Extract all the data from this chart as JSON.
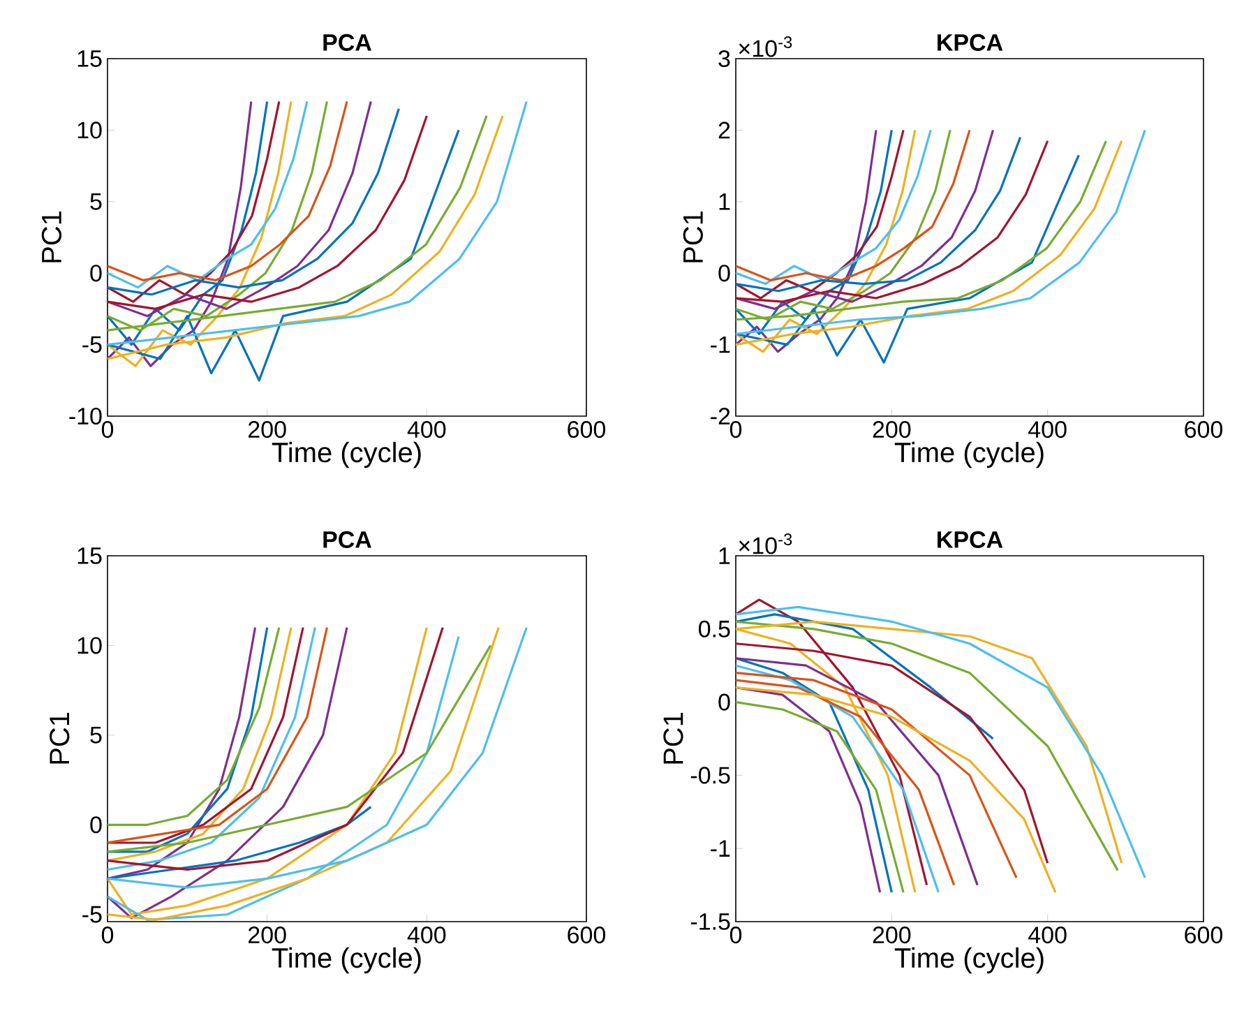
{
  "chart_data": [
    {
      "type": "line",
      "title": "PCA",
      "xlabel": "Time (cycle)",
      "ylabel": "PC1",
      "xlim": [
        0,
        600
      ],
      "ylim": [
        -10,
        15
      ],
      "xticks": [
        0,
        200,
        400,
        600
      ],
      "yticks": [
        -10,
        -5,
        0,
        5,
        10,
        15
      ],
      "series": [
        {
          "color": "#7E2F8E",
          "x": [
            0,
            27,
            54,
            81,
            108,
            130,
            151,
            167,
            180
          ],
          "values": [
            -6,
            -4.5,
            -6.5,
            -5,
            -4,
            -2,
            1,
            6,
            12
          ]
        },
        {
          "color": "#0072BD",
          "x": [
            0,
            30,
            60,
            90,
            120,
            144,
            168,
            186,
            200
          ],
          "values": [
            -3,
            -5,
            -2.5,
            -4,
            -1.5,
            -0.5,
            3,
            7,
            12
          ]
        },
        {
          "color": "#A2142F",
          "x": [
            0,
            32,
            65,
            97,
            129,
            155,
            181,
            200,
            215
          ],
          "values": [
            -1,
            -2,
            -0.5,
            -1.5,
            0,
            1.5,
            4,
            8,
            12
          ]
        },
        {
          "color": "#EDB120",
          "x": [
            0,
            35,
            69,
            104,
            138,
            166,
            193,
            214,
            230
          ],
          "values": [
            -5,
            -6.5,
            -4,
            -5,
            -3,
            -1,
            2.5,
            7,
            12
          ]
        },
        {
          "color": "#4DBEEE",
          "x": [
            0,
            38,
            75,
            113,
            150,
            180,
            210,
            233,
            250
          ],
          "values": [
            0,
            -1,
            0.5,
            -0.5,
            1,
            2,
            4.5,
            8,
            12
          ]
        },
        {
          "color": "#77AC30",
          "x": [
            0,
            41,
            83,
            124,
            165,
            198,
            231,
            256,
            275
          ],
          "values": [
            -3,
            -4,
            -2.5,
            -3,
            -1.5,
            0,
            3,
            7,
            12
          ]
        },
        {
          "color": "#D95319",
          "x": [
            0,
            45,
            90,
            135,
            180,
            216,
            252,
            279,
            300
          ],
          "values": [
            0.5,
            -0.5,
            0,
            -0.5,
            0.5,
            2,
            4,
            7.5,
            12
          ]
        },
        {
          "color": "#7E2F8E",
          "x": [
            0,
            50,
            99,
            149,
            198,
            238,
            277,
            307,
            330
          ],
          "values": [
            -2,
            -3,
            -1.5,
            -2.5,
            -1,
            0.5,
            3,
            7,
            12
          ]
        },
        {
          "color": "#0072BD",
          "x": [
            0,
            55,
            110,
            164,
            219,
            263,
            307,
            339,
            365
          ],
          "values": [
            -1,
            -1.5,
            -0.5,
            -1,
            -0.5,
            1,
            3.5,
            7,
            11.5
          ]
        },
        {
          "color": "#A2142F",
          "x": [
            0,
            60,
            120,
            180,
            240,
            288,
            336,
            372,
            400
          ],
          "values": [
            -2,
            -2.5,
            -1.5,
            -2,
            -1,
            0.5,
            3,
            6.5,
            11
          ]
        },
        {
          "color": "#0072BD",
          "x": [
            0,
            66,
            100,
            130,
            160,
            190,
            220,
            300,
            380,
            440
          ],
          "values": [
            -5,
            -6,
            -3,
            -7,
            -4,
            -7.5,
            -3,
            -2,
            1,
            10
          ]
        },
        {
          "color": "#77AC30",
          "x": [
            0,
            71,
            143,
            214,
            285,
            342,
            399,
            442,
            475
          ],
          "values": [
            -4,
            -3.5,
            -3,
            -2.5,
            -2,
            -0.5,
            2,
            6,
            11
          ]
        },
        {
          "color": "#EDB120",
          "x": [
            0,
            74,
            149,
            223,
            297,
            356,
            416,
            460,
            495
          ],
          "values": [
            -6,
            -5,
            -4.5,
            -3.5,
            -3,
            -1.5,
            1.5,
            5.5,
            11
          ]
        },
        {
          "color": "#4DBEEE",
          "x": [
            0,
            79,
            158,
            236,
            315,
            378,
            441,
            488,
            525
          ],
          "values": [
            -5,
            -4.5,
            -4,
            -3.5,
            -3,
            -2,
            1,
            5,
            12
          ]
        }
      ]
    },
    {
      "type": "line",
      "title": "KPCA",
      "xlabel": "Time (cycle)",
      "ylabel": "PC1",
      "annotations": [
        "×10$^{-3}$"
      ],
      "xlim": [
        0,
        600
      ],
      "ylim": [
        -2,
        3
      ],
      "xticks": [
        0,
        200,
        400,
        600
      ],
      "yticks": [
        -2,
        -1,
        0,
        1,
        2,
        3
      ],
      "series": [
        {
          "color": "#7E2F8E",
          "x": [
            0,
            27,
            54,
            81,
            108,
            130,
            151,
            167,
            180
          ],
          "values": [
            -1,
            -0.75,
            -1.1,
            -0.85,
            -0.65,
            -0.35,
            0.15,
            1,
            2
          ]
        },
        {
          "color": "#0072BD",
          "x": [
            0,
            30,
            60,
            90,
            120,
            144,
            168,
            186,
            200
          ],
          "values": [
            -0.5,
            -0.85,
            -0.4,
            -0.65,
            -0.25,
            -0.1,
            0.5,
            1.15,
            2
          ]
        },
        {
          "color": "#A2142F",
          "x": [
            0,
            32,
            65,
            97,
            129,
            155,
            181,
            200,
            215
          ],
          "values": [
            -0.15,
            -0.35,
            -0.1,
            -0.25,
            0,
            0.25,
            0.65,
            1.35,
            2
          ]
        },
        {
          "color": "#EDB120",
          "x": [
            0,
            35,
            69,
            104,
            138,
            166,
            193,
            214,
            230
          ],
          "values": [
            -0.85,
            -1.1,
            -0.65,
            -0.85,
            -0.5,
            -0.15,
            0.4,
            1.15,
            2
          ]
        },
        {
          "color": "#4DBEEE",
          "x": [
            0,
            38,
            75,
            113,
            150,
            180,
            210,
            233,
            250
          ],
          "values": [
            0,
            -0.15,
            0.1,
            -0.1,
            0.15,
            0.35,
            0.75,
            1.35,
            2
          ]
        },
        {
          "color": "#77AC30",
          "x": [
            0,
            41,
            83,
            124,
            165,
            198,
            231,
            256,
            275
          ],
          "values": [
            -0.5,
            -0.65,
            -0.4,
            -0.5,
            -0.25,
            0,
            0.5,
            1.15,
            2
          ]
        },
        {
          "color": "#D95319",
          "x": [
            0,
            45,
            90,
            135,
            180,
            216,
            252,
            279,
            300
          ],
          "values": [
            0.1,
            -0.1,
            0,
            -0.1,
            0.1,
            0.35,
            0.65,
            1.25,
            2
          ]
        },
        {
          "color": "#7E2F8E",
          "x": [
            0,
            50,
            99,
            149,
            198,
            238,
            277,
            307,
            330
          ],
          "values": [
            -0.35,
            -0.5,
            -0.25,
            -0.4,
            -0.15,
            0.1,
            0.5,
            1.15,
            2
          ]
        },
        {
          "color": "#0072BD",
          "x": [
            0,
            55,
            110,
            164,
            219,
            263,
            307,
            339,
            365
          ],
          "values": [
            -0.15,
            -0.25,
            -0.1,
            -0.15,
            -0.1,
            0.15,
            0.6,
            1.15,
            1.9
          ]
        },
        {
          "color": "#A2142F",
          "x": [
            0,
            60,
            120,
            180,
            240,
            288,
            336,
            372,
            400
          ],
          "values": [
            -0.35,
            -0.4,
            -0.25,
            -0.35,
            -0.15,
            0.1,
            0.5,
            1.1,
            1.85
          ]
        },
        {
          "color": "#0072BD",
          "x": [
            0,
            66,
            100,
            130,
            160,
            190,
            220,
            300,
            380,
            440
          ],
          "values": [
            -0.85,
            -1,
            -0.5,
            -1.15,
            -0.65,
            -1.25,
            -0.5,
            -0.35,
            0.15,
            1.65
          ]
        },
        {
          "color": "#77AC30",
          "x": [
            0,
            71,
            143,
            214,
            285,
            342,
            399,
            442,
            475
          ],
          "values": [
            -0.65,
            -0.6,
            -0.5,
            -0.4,
            -0.35,
            -0.1,
            0.35,
            1,
            1.85
          ]
        },
        {
          "color": "#EDB120",
          "x": [
            0,
            74,
            149,
            223,
            297,
            356,
            416,
            460,
            495
          ],
          "values": [
            -1,
            -0.85,
            -0.75,
            -0.6,
            -0.5,
            -0.25,
            0.25,
            0.9,
            1.85
          ]
        },
        {
          "color": "#4DBEEE",
          "x": [
            0,
            79,
            158,
            236,
            315,
            378,
            441,
            488,
            525
          ],
          "values": [
            -0.85,
            -0.75,
            -0.65,
            -0.6,
            -0.5,
            -0.35,
            0.15,
            0.85,
            2
          ]
        }
      ]
    },
    {
      "type": "line",
      "title": "PCA",
      "xlabel": "Time (cycle)",
      "ylabel": "PC1",
      "xlim": [
        0,
        600
      ],
      "ylim": [
        -5.4,
        15
      ],
      "xticks": [
        0,
        200,
        400,
        600
      ],
      "yticks": [
        -5,
        0,
        5,
        10,
        15
      ],
      "series": [
        {
          "color": "#7E2F8E",
          "x": [
            0,
            50,
            100,
            140,
            165,
            185
          ],
          "values": [
            -3,
            -2.5,
            -1,
            2,
            6,
            11
          ]
        },
        {
          "color": "#0072BD",
          "x": [
            0,
            50,
            100,
            150,
            180,
            200
          ],
          "values": [
            -1.5,
            -1.5,
            -0.5,
            2,
            6,
            11
          ]
        },
        {
          "color": "#77AC30",
          "x": [
            0,
            50,
            100,
            150,
            190,
            215
          ],
          "values": [
            0,
            0,
            0.5,
            2.5,
            6.5,
            11
          ]
        },
        {
          "color": "#EDB120",
          "x": [
            0,
            60,
            120,
            170,
            205,
            230
          ],
          "values": [
            -2,
            -1.5,
            -0.5,
            2,
            6,
            11
          ]
        },
        {
          "color": "#A2142F",
          "x": [
            0,
            60,
            120,
            180,
            220,
            245
          ],
          "values": [
            -1,
            -1,
            0,
            2,
            6,
            11
          ]
        },
        {
          "color": "#4DBEEE",
          "x": [
            0,
            65,
            130,
            190,
            235,
            260
          ],
          "values": [
            -2.5,
            -2,
            -1,
            1.5,
            6,
            11
          ]
        },
        {
          "color": "#D95319",
          "x": [
            0,
            70,
            140,
            200,
            250,
            275
          ],
          "values": [
            -1,
            -0.5,
            0,
            2,
            6,
            11
          ]
        },
        {
          "color": "#7E2F8E",
          "x": [
            0,
            30,
            80,
            150,
            220,
            270,
            300
          ],
          "values": [
            -4,
            -5.2,
            -4,
            -2,
            1,
            5,
            11
          ]
        },
        {
          "color": "#0072BD",
          "x": [
            0,
            80,
            160,
            240,
            300,
            330
          ],
          "values": [
            -3,
            -2.5,
            -2,
            -1,
            0,
            1
          ]
        },
        {
          "color": "#EDB120",
          "x": [
            0,
            30,
            100,
            200,
            300,
            360,
            400
          ],
          "values": [
            -3,
            -5,
            -4.5,
            -3,
            0,
            4,
            11
          ]
        },
        {
          "color": "#A2142F",
          "x": [
            0,
            100,
            200,
            300,
            370,
            420
          ],
          "values": [
            -2,
            -2.5,
            -2,
            0,
            4,
            11
          ]
        },
        {
          "color": "#4DBEEE",
          "x": [
            0,
            50,
            150,
            250,
            350,
            400,
            440
          ],
          "values": [
            -4,
            -5.3,
            -5,
            -3,
            0,
            4,
            10.5
          ]
        },
        {
          "color": "#77AC30",
          "x": [
            0,
            100,
            200,
            300,
            400,
            480
          ],
          "values": [
            -1.5,
            -1,
            0,
            1,
            4,
            10
          ]
        },
        {
          "color": "#EDB120",
          "x": [
            0,
            60,
            150,
            250,
            350,
            430,
            490
          ],
          "values": [
            -5,
            -5.3,
            -4.5,
            -3,
            -1,
            3,
            11
          ]
        },
        {
          "color": "#4DBEEE",
          "x": [
            0,
            100,
            200,
            300,
            400,
            470,
            525
          ],
          "values": [
            -3,
            -3.5,
            -3,
            -2,
            0,
            4,
            11
          ]
        }
      ]
    },
    {
      "type": "line",
      "title": "KPCA",
      "xlabel": "Time (cycle)",
      "ylabel": "PC1",
      "annotations": [
        "×10$^{-3}$"
      ],
      "xlim": [
        0,
        600
      ],
      "ylim": [
        -1.5,
        1
      ],
      "xticks": [
        0,
        200,
        400,
        600
      ],
      "yticks": [
        -1.5,
        -1,
        -0.5,
        0,
        0.5,
        1
      ],
      "series": [
        {
          "color": "#7E2F8E",
          "x": [
            0,
            60,
            120,
            160,
            185
          ],
          "values": [
            0.1,
            0.05,
            -0.2,
            -0.7,
            -1.3
          ]
        },
        {
          "color": "#0072BD",
          "x": [
            0,
            60,
            120,
            170,
            200
          ],
          "values": [
            0.3,
            0.2,
            0,
            -0.6,
            -1.3
          ]
        },
        {
          "color": "#77AC30",
          "x": [
            0,
            60,
            130,
            180,
            215
          ],
          "values": [
            0,
            -0.05,
            -0.2,
            -0.6,
            -1.3
          ]
        },
        {
          "color": "#EDB120",
          "x": [
            0,
            70,
            140,
            195,
            230
          ],
          "values": [
            0.5,
            0.4,
            0.1,
            -0.5,
            -1.3
          ]
        },
        {
          "color": "#A2142F",
          "x": [
            0,
            30,
            80,
            150,
            210,
            245
          ],
          "values": [
            0.6,
            0.7,
            0.55,
            0.1,
            -0.5,
            -1.25
          ]
        },
        {
          "color": "#4DBEEE",
          "x": [
            0,
            70,
            150,
            215,
            260
          ],
          "values": [
            0.25,
            0.15,
            -0.1,
            -0.6,
            -1.3
          ]
        },
        {
          "color": "#D95319",
          "x": [
            0,
            80,
            160,
            235,
            280
          ],
          "values": [
            0.15,
            0.1,
            -0.1,
            -0.6,
            -1.25
          ]
        },
        {
          "color": "#7E2F8E",
          "x": [
            0,
            90,
            180,
            260,
            310
          ],
          "values": [
            0.3,
            0.25,
            0,
            -0.5,
            -1.25
          ]
        },
        {
          "color": "#0072BD",
          "x": [
            0,
            50,
            150,
            250,
            330
          ],
          "values": [
            0.55,
            0.6,
            0.5,
            0.1,
            -0.25
          ]
        },
        {
          "color": "#D95319",
          "x": [
            0,
            100,
            200,
            300,
            360
          ],
          "values": [
            0.2,
            0.15,
            -0.05,
            -0.5,
            -1.2
          ]
        },
        {
          "color": "#A2142F",
          "x": [
            0,
            100,
            200,
            300,
            370,
            400
          ],
          "values": [
            0.4,
            0.35,
            0.25,
            -0.1,
            -0.6,
            -1.1
          ]
        },
        {
          "color": "#EDB120",
          "x": [
            0,
            100,
            200,
            300,
            370,
            410
          ],
          "values": [
            0.1,
            0.05,
            -0.1,
            -0.4,
            -0.8,
            -1.3
          ]
        },
        {
          "color": "#77AC30",
          "x": [
            0,
            100,
            200,
            300,
            400,
            490
          ],
          "values": [
            0.55,
            0.5,
            0.4,
            0.2,
            -0.3,
            -1.15
          ]
        },
        {
          "color": "#EDB120",
          "x": [
            0,
            100,
            200,
            300,
            380,
            450,
            495
          ],
          "values": [
            0.5,
            0.55,
            0.5,
            0.45,
            0.3,
            -0.3,
            -1.1
          ]
        },
        {
          "color": "#4DBEEE",
          "x": [
            0,
            80,
            200,
            300,
            400,
            470,
            525
          ],
          "values": [
            0.6,
            0.65,
            0.55,
            0.4,
            0.1,
            -0.5,
            -1.2
          ]
        }
      ]
    }
  ]
}
